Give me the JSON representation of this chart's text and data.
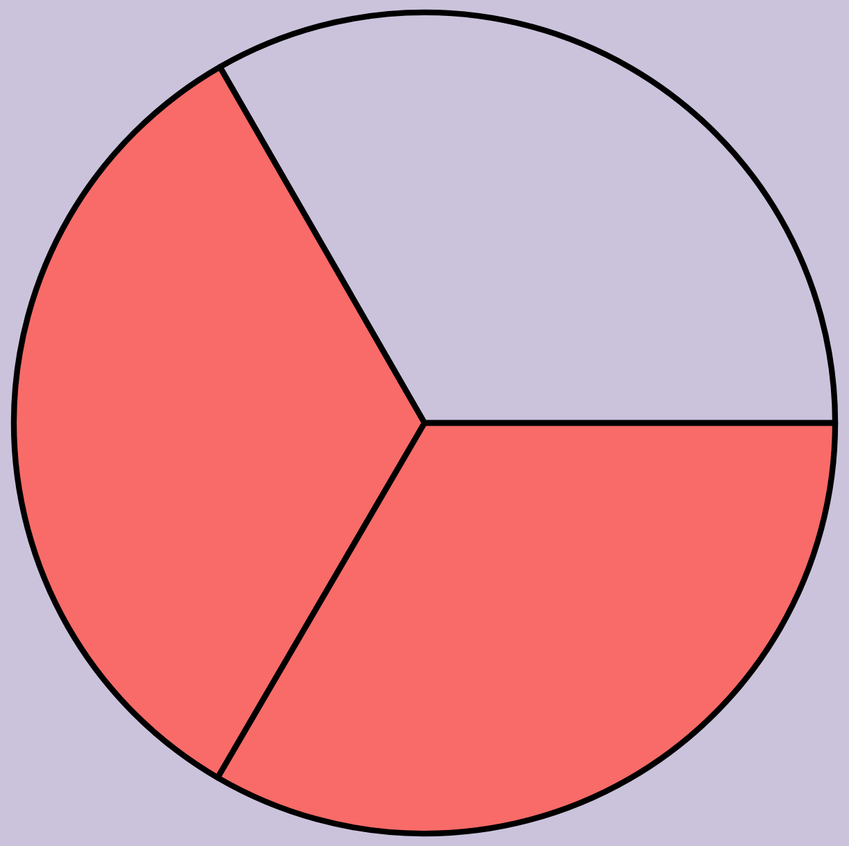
{
  "chart_data": {
    "type": "pie",
    "categories": [
      null,
      null,
      null
    ],
    "values": [
      33.3,
      33.3,
      33.4
    ],
    "colors": [
      "#cbc3dc",
      "#f86b68",
      "#f86b68"
    ]
  }
}
